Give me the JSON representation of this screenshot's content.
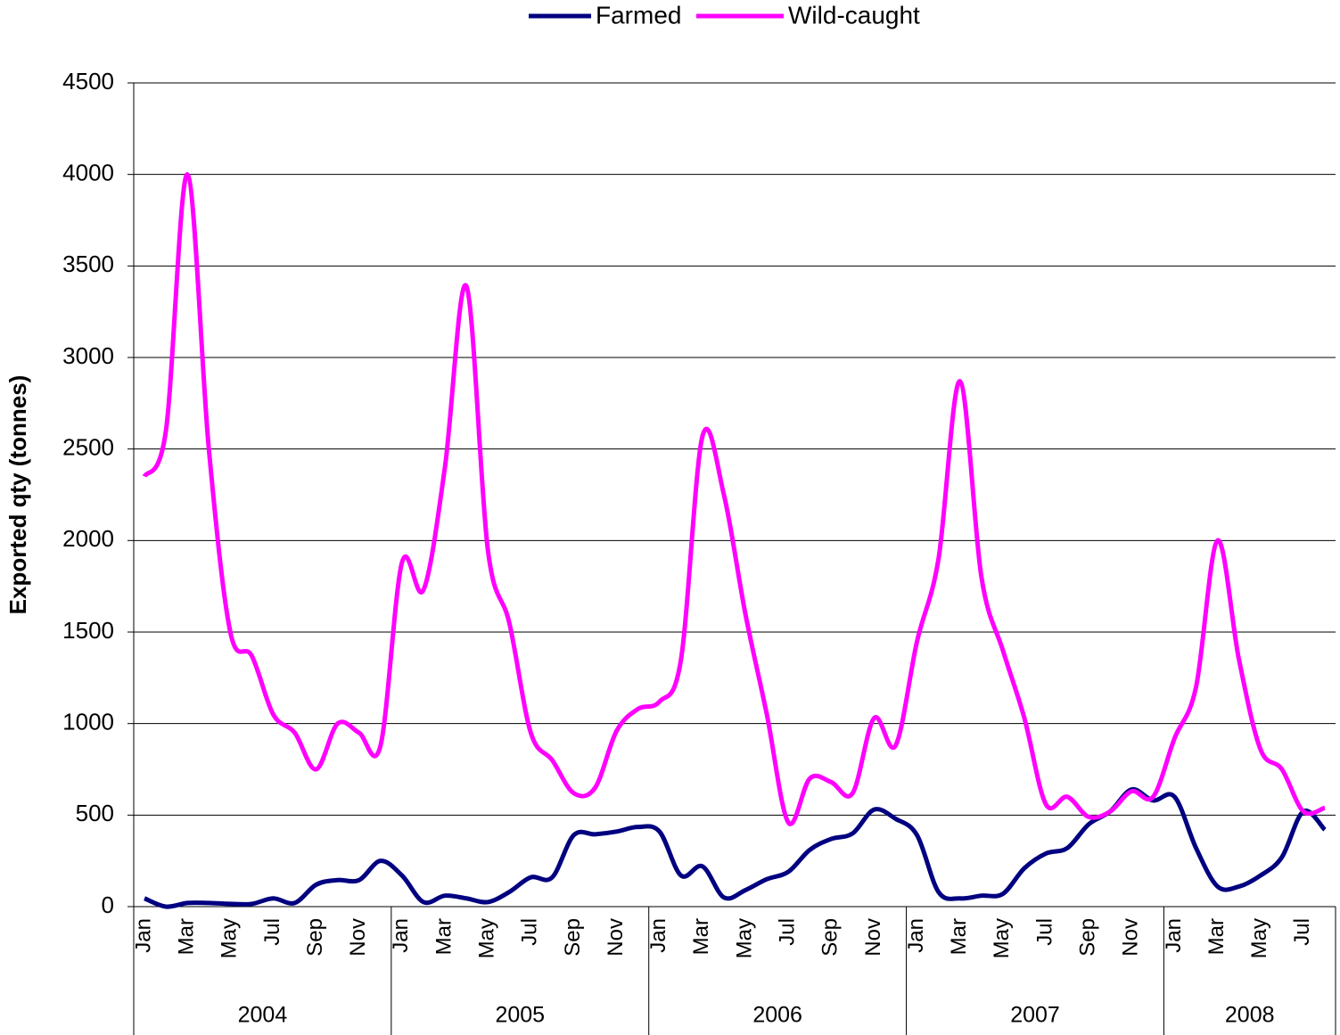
{
  "chart_data": {
    "type": "line",
    "y_label": "Exported qty (tonnes)",
    "category_groups": [
      {
        "name": "2004",
        "categories": [
          "Jan",
          null,
          "Mar",
          null,
          "May",
          null,
          "Jul",
          null,
          "Sep",
          null,
          "Nov",
          null
        ]
      },
      {
        "name": "2005",
        "categories": [
          "Jan",
          null,
          "Mar",
          null,
          "May",
          null,
          "Jul",
          null,
          "Sep",
          null,
          "Nov",
          null
        ]
      },
      {
        "name": "2006",
        "categories": [
          "Jan",
          null,
          "Mar",
          null,
          "May",
          null,
          "Jul",
          null,
          "Sep",
          null,
          "Nov",
          null
        ]
      },
      {
        "name": "2007",
        "categories": [
          "Jan",
          null,
          "Mar",
          null,
          "May",
          null,
          "Jul",
          null,
          "Sep",
          null,
          "Nov",
          null
        ]
      },
      {
        "name": "2008",
        "categories": [
          "Jan",
          null,
          "Mar",
          null,
          "May",
          null,
          "Jul",
          null
        ]
      }
    ],
    "series": [
      {
        "name": "Farmed",
        "color": "#000080",
        "values": [
          45,
          0,
          20,
          20,
          15,
          15,
          45,
          20,
          120,
          145,
          145,
          250,
          170,
          25,
          60,
          45,
          25,
          80,
          160,
          160,
          390,
          395,
          410,
          435,
          410,
          170,
          220,
          50,
          90,
          150,
          190,
          310,
          370,
          400,
          530,
          480,
          390,
          80,
          45,
          60,
          70,
          210,
          290,
          320,
          450,
          520,
          640,
          580,
          600,
          320,
          110,
          110,
          170,
          270,
          520,
          420
        ]
      },
      {
        "name": "Wild-caught",
        "color": "#ff00ff",
        "values": [
          2350,
          2600,
          4000,
          2500,
          1500,
          1370,
          1050,
          950,
          750,
          1000,
          950,
          880,
          1880,
          1730,
          2400,
          3390,
          1950,
          1550,
          950,
          800,
          620,
          650,
          960,
          1080,
          1120,
          1350,
          2570,
          2250,
          1600,
          1050,
          460,
          700,
          680,
          620,
          1030,
          880,
          1450,
          1900,
          2870,
          1800,
          1400,
          1030,
          560,
          600,
          490,
          520,
          630,
          600,
          920,
          1200,
          2000,
          1350,
          860,
          750,
          520,
          540
        ]
      }
    ],
    "ylim": [
      0,
      4500
    ],
    "yticks": [
      0,
      500,
      1000,
      1500,
      2000,
      2500,
      3000,
      3500,
      4000,
      4500
    ],
    "grid": true,
    "legend": "top"
  }
}
